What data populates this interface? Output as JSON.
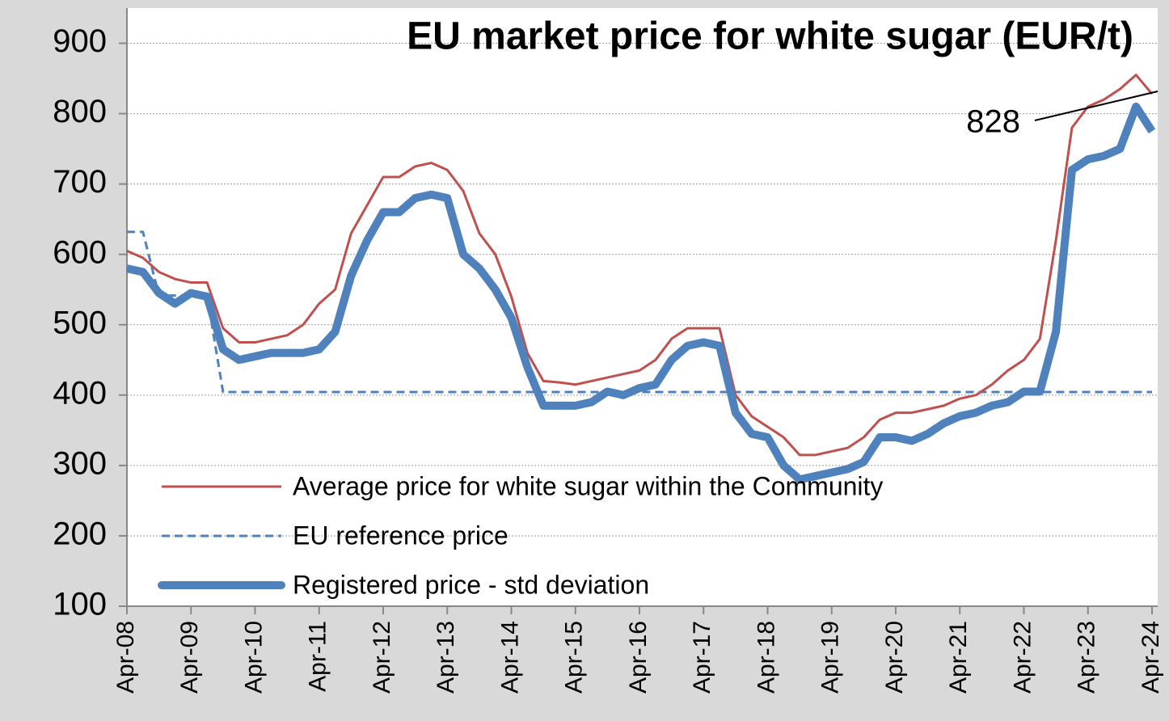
{
  "chart_data": {
    "type": "line",
    "title": "EU market price for white sugar (EUR/t)",
    "categories": [
      "Apr-08",
      null,
      null,
      null,
      "Apr-09",
      null,
      null,
      null,
      "Apr-10",
      null,
      null,
      null,
      "Apr-11",
      null,
      null,
      null,
      "Apr-12",
      null,
      null,
      null,
      "Apr-13",
      null,
      null,
      null,
      "Apr-14",
      null,
      null,
      null,
      "Apr-15",
      null,
      null,
      null,
      "Apr-16",
      null,
      null,
      null,
      "Apr-17",
      null,
      null,
      null,
      "Apr-18",
      null,
      null,
      null,
      "Apr-19",
      null,
      null,
      null,
      "Apr-20",
      null,
      null,
      null,
      "Apr-21",
      null,
      null,
      null,
      "Apr-22",
      null,
      null,
      null,
      "Apr-23",
      null,
      null,
      null,
      "Apr-24"
    ],
    "series": [
      {
        "name": "Average price for white sugar within the Community",
        "color": "#c0504d",
        "style": "solid",
        "width": 3,
        "values": [
          605,
          595,
          575,
          565,
          560,
          560,
          495,
          475,
          475,
          480,
          485,
          500,
          530,
          550,
          630,
          670,
          710,
          710,
          725,
          730,
          720,
          690,
          630,
          600,
          540,
          460,
          420,
          418,
          415,
          420,
          425,
          430,
          435,
          450,
          480,
          495,
          495,
          495,
          400,
          370,
          355,
          340,
          315,
          315,
          320,
          325,
          340,
          365,
          375,
          375,
          380,
          385,
          395,
          400,
          415,
          435,
          450,
          480,
          620,
          780,
          810,
          820,
          835,
          855,
          828
        ]
      },
      {
        "name": "EU reference price",
        "color": "#4f81bd",
        "style": "dashed",
        "width": 3,
        "values": [
          631.9,
          631.9,
          541.5,
          541.5,
          541.5,
          541.5,
          404.4,
          404.4,
          404.4,
          404.4,
          404.4,
          404.4,
          404.4,
          404.4,
          404.4,
          404.4,
          404.4,
          404.4,
          404.4,
          404.4,
          404.4,
          404.4,
          404.4,
          404.4,
          404.4,
          404.4,
          404.4,
          404.4,
          404.4,
          404.4,
          404.4,
          404.4,
          404.4,
          404.4,
          404.4,
          404.4,
          404.4,
          404.4,
          404.4,
          404.4,
          404.4,
          404.4,
          404.4,
          404.4,
          404.4,
          404.4,
          404.4,
          404.4,
          404.4,
          404.4,
          404.4,
          404.4,
          404.4,
          404.4,
          404.4,
          404.4,
          404.4,
          404.4,
          404.4,
          404.4,
          404.4,
          404.4,
          404.4,
          404.4,
          404.4
        ]
      },
      {
        "name": "Registered price - std deviation",
        "color": "#4f81bd",
        "style": "solid",
        "width": 10,
        "values": [
          580,
          575,
          545,
          530,
          545,
          540,
          465,
          450,
          455,
          460,
          460,
          460,
          465,
          490,
          570,
          620,
          660,
          660,
          680,
          685,
          680,
          600,
          580,
          550,
          510,
          440,
          385,
          385,
          385,
          390,
          405,
          400,
          410,
          415,
          450,
          470,
          475,
          470,
          375,
          345,
          340,
          300,
          280,
          285,
          290,
          295,
          305,
          340,
          340,
          335,
          345,
          360,
          370,
          375,
          385,
          390,
          405,
          405,
          490,
          720,
          735,
          740,
          750,
          810,
          775
        ]
      }
    ],
    "annotation": "828",
    "ylim": [
      100,
      950
    ],
    "yticks": [
      100,
      200,
      300,
      400,
      500,
      600,
      700,
      800,
      900
    ],
    "grid": true
  }
}
